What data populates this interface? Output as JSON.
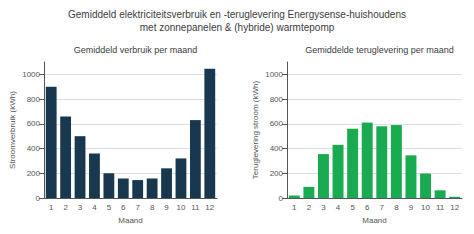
{
  "title": "Gemiddeld elektriciteitsverbruik en -teruglevering Energysense-huishoudens\nmet zonnepanelen & (hybride) warmtepomp",
  "chart_data": [
    {
      "type": "bar",
      "subtitle": "Gemiddeld verbruik per maand",
      "categories": [
        1,
        2,
        3,
        4,
        5,
        6,
        7,
        8,
        9,
        10,
        11,
        12
      ],
      "values": [
        900,
        660,
        500,
        360,
        200,
        158,
        145,
        158,
        240,
        320,
        630,
        1045
      ],
      "color": "#17384f",
      "xlabel": "Maand",
      "ylabel": "Stroomverbruik (kWh)",
      "ylim": [
        0,
        1100
      ],
      "yticks": [
        0,
        200,
        400,
        600,
        800,
        1000
      ],
      "grid": true
    },
    {
      "type": "bar",
      "subtitle": "Gemiddelde teruglevering per maand",
      "categories": [
        1,
        2,
        3,
        4,
        5,
        6,
        7,
        8,
        9,
        10,
        11,
        12
      ],
      "values": [
        20,
        90,
        355,
        430,
        560,
        610,
        580,
        590,
        345,
        198,
        62,
        10
      ],
      "color": "#1aaa50",
      "xlabel": "Maand",
      "ylabel": "Teruglevering stroom (kWh)",
      "ylim": [
        0,
        1100
      ],
      "yticks": [
        0,
        200,
        400,
        600,
        800,
        1000
      ],
      "grid": true
    }
  ]
}
